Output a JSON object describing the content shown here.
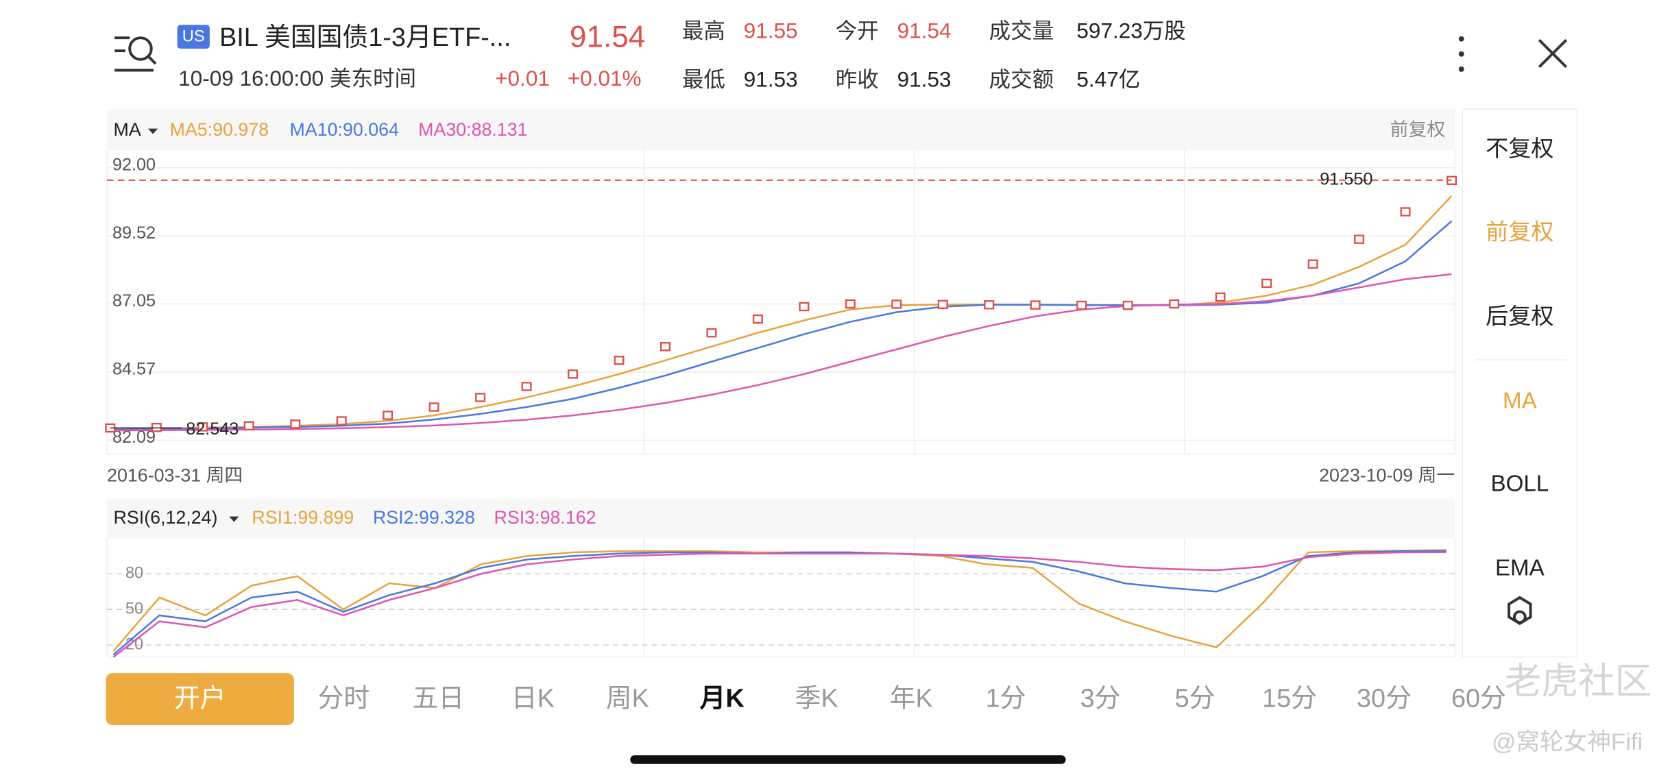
{
  "header": {
    "badge": "US",
    "title": "BIL 美国国债1-3月ETF-...",
    "price": "91.54",
    "time": "10-09 16:00:00 美东时间",
    "change": "+0.01",
    "change_pct": "+0.01%",
    "stats": [
      {
        "label": "最高",
        "value": "91.55"
      },
      {
        "label": "今开",
        "value": "91.54"
      },
      {
        "label": "成交量",
        "value": "597.23万股"
      },
      {
        "label": "最低",
        "value": "91.53"
      },
      {
        "label": "昨收",
        "value": "91.53"
      },
      {
        "label": "成交额",
        "value": "5.47亿"
      }
    ]
  },
  "chart_data": [
    {
      "type": "candlestick",
      "indicator": "MA",
      "adjust": "前复权",
      "candle_color": "#e0504a",
      "ylim": [
        81.6,
        92.6
      ],
      "yticks": [
        {
          "value": 92,
          "label": "92.00"
        },
        {
          "value": 89.52,
          "label": "89.52"
        },
        {
          "value": 87.05,
          "label": "87.05"
        },
        {
          "value": 84.57,
          "label": "84.57"
        },
        {
          "value": 82.09,
          "label": "82.09"
        }
      ],
      "high_line": {
        "value": 91.55,
        "label": "91.550"
      },
      "low_label": {
        "value": 82.543,
        "label": "82.543"
      },
      "start_date": "2016-03-31 周四",
      "end_date": "2023-10-09 周一",
      "close": [
        82.54,
        82.56,
        82.58,
        82.62,
        82.68,
        82.8,
        83.0,
        83.3,
        83.65,
        84.05,
        84.5,
        85.0,
        85.5,
        86.0,
        86.5,
        86.95,
        87.05,
        87.04,
        87.03,
        87.02,
        87.01,
        87.0,
        87.0,
        87.05,
        87.3,
        87.8,
        88.5,
        89.4,
        90.4,
        91.54
      ],
      "series": [
        {
          "name": "MA5:90.978",
          "color": "#e8a33c",
          "values": [
            82.5,
            82.52,
            82.55,
            82.58,
            82.62,
            82.68,
            82.8,
            83.0,
            83.3,
            83.65,
            84.05,
            84.5,
            85.0,
            85.5,
            86.0,
            86.45,
            86.85,
            87.0,
            87.03,
            87.03,
            87.02,
            87.01,
            87.0,
            87.01,
            87.1,
            87.35,
            87.75,
            88.4,
            89.2,
            90.978
          ]
        },
        {
          "name": "MA10:90.064",
          "color": "#4a78e0",
          "values": [
            82.48,
            82.5,
            82.52,
            82.55,
            82.58,
            82.62,
            82.7,
            82.85,
            83.05,
            83.3,
            83.6,
            84.0,
            84.45,
            84.95,
            85.45,
            85.95,
            86.4,
            86.75,
            86.95,
            87.02,
            87.02,
            87.01,
            87.0,
            87.0,
            87.02,
            87.1,
            87.35,
            87.8,
            88.6,
            90.064
          ]
        },
        {
          "name": "MA30:88.131",
          "color": "#e055b0",
          "values": [
            82.45,
            82.46,
            82.47,
            82.48,
            82.5,
            82.53,
            82.57,
            82.63,
            82.72,
            82.84,
            83.0,
            83.2,
            83.45,
            83.75,
            84.1,
            84.5,
            84.95,
            85.4,
            85.85,
            86.25,
            86.6,
            86.85,
            86.98,
            87.02,
            87.05,
            87.15,
            87.35,
            87.65,
            87.95,
            88.131
          ]
        }
      ]
    },
    {
      "type": "line",
      "indicator": "RSI(6,12,24)",
      "ylim": [
        10,
        110
      ],
      "yticks": [
        80,
        50,
        20
      ],
      "grid": true,
      "series": [
        {
          "name": "RSI1:99.899",
          "color": "#e8a33c",
          "values": [
            15,
            60,
            45,
            70,
            78,
            50,
            72,
            68,
            88,
            95,
            98,
            99,
            99,
            99,
            98,
            98,
            98,
            97,
            95,
            88,
            85,
            55,
            40,
            28,
            18,
            55,
            98,
            99,
            99.5,
            99.899
          ]
        },
        {
          "name": "RSI2:99.328",
          "color": "#4a78e0",
          "values": [
            12,
            45,
            40,
            60,
            65,
            48,
            62,
            72,
            85,
            92,
            95,
            97,
            98,
            98,
            97,
            98,
            98,
            97,
            96,
            93,
            90,
            82,
            72,
            68,
            65,
            78,
            95,
            98,
            99,
            99.328
          ]
        },
        {
          "name": "RSI3:98.162",
          "color": "#e055b0",
          "values": [
            10,
            40,
            35,
            52,
            58,
            45,
            58,
            68,
            80,
            88,
            92,
            95,
            96,
            97,
            97,
            97,
            97,
            97,
            96,
            95,
            93,
            90,
            86,
            84,
            83,
            86,
            94,
            97,
            98,
            98.162
          ]
        }
      ]
    }
  ],
  "side_menu": [
    "不复权",
    "前复权",
    "后复权",
    "MA",
    "BOLL",
    "EMA"
  ],
  "open_account": "开户",
  "tabs": [
    "分时",
    "五日",
    "日K",
    "周K",
    "月K",
    "季K",
    "年K",
    "1分",
    "3分",
    "5分",
    "15分",
    "30分",
    "60分"
  ],
  "watermark": "老虎社区",
  "author": "@窝轮女神Fifi"
}
